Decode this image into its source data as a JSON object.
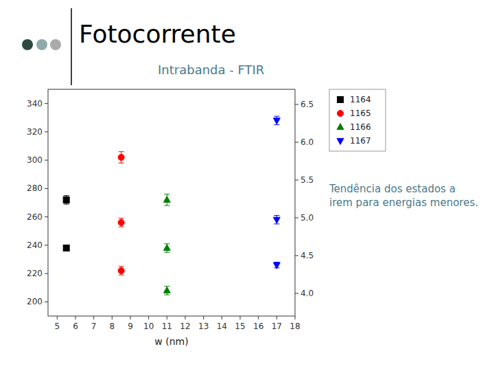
{
  "chart_data": {
    "type": "scatter",
    "title": "Fotocorrente",
    "subtitle": "Intrabanda - FTIR",
    "annotation": "Tendência dos estados a\nirem para energias menores.",
    "xlabel": "w (nm)",
    "xlim": [
      4.5,
      18
    ],
    "ylim": [
      190,
      350
    ],
    "y2lim": [
      3.7,
      6.7
    ],
    "xticks": [
      5,
      6,
      7,
      8,
      9,
      10,
      11,
      12,
      13,
      14,
      15,
      16,
      17,
      18
    ],
    "yticks": [
      200,
      220,
      240,
      260,
      280,
      300,
      320,
      340
    ],
    "y2ticks": [
      {
        "value": 4.0,
        "label": "4.0"
      },
      4.5,
      {
        "value": 5.0,
        "label": "5.0"
      },
      5.5,
      {
        "value": 6.0,
        "label": "6.0"
      },
      6.5
    ],
    "grid": false,
    "legend": "upper-right",
    "series": [
      {
        "name": "1164",
        "color": "black",
        "marker": "square",
        "x": [
          5.5,
          5.5
        ],
        "values": [
          272,
          238
        ],
        "yerr": [
          3,
          2
        ]
      },
      {
        "name": "1165",
        "color": "red",
        "marker": "circle",
        "x": [
          8.5,
          8.5,
          8.5
        ],
        "values": [
          302,
          256,
          222
        ],
        "yerr": [
          4,
          3,
          3
        ]
      },
      {
        "name": "1166",
        "color": "green",
        "marker": "triangle-up",
        "x": [
          11,
          11,
          11
        ],
        "values": [
          272,
          238,
          208
        ],
        "yerr": [
          4,
          3,
          3
        ]
      },
      {
        "name": "1167",
        "color": "blue",
        "marker": "triangle-down",
        "x": [
          17,
          17,
          17
        ],
        "values": [
          328,
          258,
          226
        ],
        "yerr": [
          3,
          3,
          2
        ]
      }
    ]
  }
}
